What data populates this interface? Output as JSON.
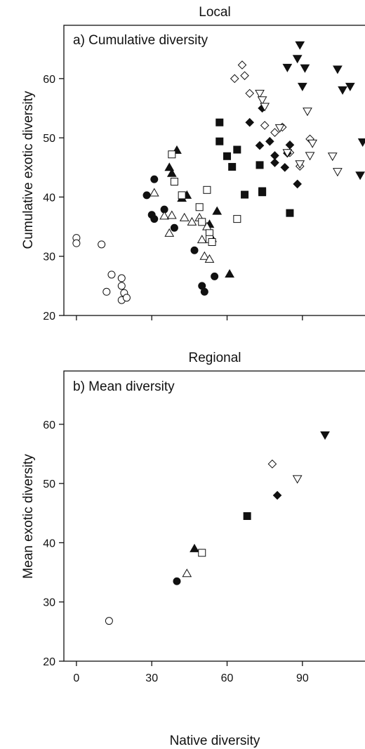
{
  "figure": {
    "panels": [
      {
        "header": "Local",
        "inset_title": "a) Cumulative diversity",
        "ylabel": "Cumulative exotic diversity"
      },
      {
        "header": "Regional",
        "inset_title": "b) Mean diversity",
        "ylabel": "Mean exotic diversity"
      }
    ],
    "xlabel": "Native diversity"
  },
  "chart_data": [
    {
      "type": "scatter",
      "title": "Local",
      "subtitle": "a) Cumulative diversity",
      "xlabel": "",
      "ylabel": "Cumulative exotic diversity",
      "xlim": [
        -5,
        118
      ],
      "ylim": [
        20,
        69
      ],
      "x_ticks": [
        0,
        30,
        60,
        90
      ],
      "x_tick_labels_shown": false,
      "y_ticks": [
        20,
        30,
        40,
        50,
        60
      ],
      "grid": false,
      "series": [
        {
          "marker": "circle",
          "fill": "open",
          "points": [
            [
              0,
              33.1
            ],
            [
              0,
              32.2
            ],
            [
              10,
              32
            ],
            [
              14,
              26.9
            ],
            [
              18,
              26.3
            ],
            [
              18,
              25
            ],
            [
              19,
              23.8
            ],
            [
              12,
              24
            ],
            [
              18,
              22.6
            ],
            [
              20,
              23
            ]
          ]
        },
        {
          "marker": "circle",
          "fill": "filled",
          "points": [
            [
              28,
              40.3
            ],
            [
              31,
              43
            ],
            [
              30,
              37
            ],
            [
              31,
              36.3
            ],
            [
              35,
              37.9
            ],
            [
              39,
              34.8
            ],
            [
              47,
              31
            ],
            [
              50,
              25
            ],
            [
              51,
              24
            ],
            [
              55,
              26.6
            ]
          ]
        },
        {
          "marker": "triangle-up",
          "fill": "filled",
          "points": [
            [
              40,
              47.9
            ],
            [
              37,
              45
            ],
            [
              38,
              44
            ],
            [
              42,
              39.8
            ],
            [
              44,
              40.3
            ],
            [
              53,
              35.4
            ],
            [
              54,
              33
            ],
            [
              56,
              37.6
            ],
            [
              61,
              27
            ]
          ]
        },
        {
          "marker": "triangle-up",
          "fill": "open",
          "points": [
            [
              31,
              40.7
            ],
            [
              35,
              36.8
            ],
            [
              37,
              33.9
            ],
            [
              38,
              36.9
            ],
            [
              43,
              36.5
            ],
            [
              46,
              35.8
            ],
            [
              49,
              36.5
            ],
            [
              50,
              32.8
            ],
            [
              51,
              30
            ],
            [
              53,
              29.5
            ],
            [
              52,
              35
            ]
          ]
        },
        {
          "marker": "square",
          "fill": "open",
          "points": [
            [
              38,
              47.2
            ],
            [
              39,
              42.6
            ],
            [
              42,
              40.3
            ],
            [
              49,
              38.3
            ],
            [
              52,
              41.2
            ],
            [
              50,
              35.8
            ],
            [
              53,
              33.9
            ],
            [
              53,
              32.9
            ],
            [
              54,
              32.4
            ],
            [
              64,
              36.3
            ]
          ]
        },
        {
          "marker": "square",
          "fill": "filled",
          "points": [
            [
              57,
              52.6
            ],
            [
              57,
              49.4
            ],
            [
              60,
              46.9
            ],
            [
              62,
              45.1
            ],
            [
              64,
              48
            ],
            [
              67,
              40.4
            ],
            [
              73,
              45.4
            ],
            [
              74,
              41
            ],
            [
              74,
              40.8
            ],
            [
              85,
              37.3
            ]
          ]
        },
        {
          "marker": "diamond",
          "fill": "open",
          "points": [
            [
              63,
              60
            ],
            [
              66,
              62.3
            ],
            [
              67,
              60.5
            ],
            [
              69,
              57.5
            ],
            [
              75,
              52.1
            ],
            [
              79,
              50.9
            ],
            [
              82,
              51.8
            ],
            [
              85,
              47.5
            ],
            [
              89,
              45.2
            ],
            [
              93,
              49.8
            ]
          ]
        },
        {
          "marker": "diamond",
          "fill": "filled",
          "points": [
            [
              69,
              52.6
            ],
            [
              73,
              48.7
            ],
            [
              74,
              55
            ],
            [
              77,
              49.4
            ],
            [
              79,
              47
            ],
            [
              79,
              45.8
            ],
            [
              83,
              45
            ],
            [
              84,
              47.4
            ],
            [
              85,
              48.8
            ],
            [
              88,
              42.2
            ]
          ]
        },
        {
          "marker": "triangle-down",
          "fill": "open",
          "points": [
            [
              73,
              57.5
            ],
            [
              74,
              56.4
            ],
            [
              75,
              55.3
            ],
            [
              81,
              51.7
            ],
            [
              84,
              47.5
            ],
            [
              89,
              45.6
            ],
            [
              92,
              54.5
            ],
            [
              93,
              47
            ],
            [
              94,
              49.1
            ],
            [
              102,
              46.9
            ],
            [
              104,
              44.3
            ]
          ]
        },
        {
          "marker": "triangle-down",
          "fill": "filled",
          "points": [
            [
              84,
              61.9
            ],
            [
              88,
              63.4
            ],
            [
              89,
              65.7
            ],
            [
              91,
              61.8
            ],
            [
              90,
              58.7
            ],
            [
              104,
              61.6
            ],
            [
              106,
              58.1
            ],
            [
              109,
              58.7
            ],
            [
              114,
              49.3
            ],
            [
              113,
              43.7
            ]
          ]
        }
      ]
    },
    {
      "type": "scatter",
      "title": "Regional",
      "subtitle": "b) Mean diversity",
      "xlabel": "Native diversity",
      "ylabel": "Mean exotic diversity",
      "xlim": [
        -5,
        118
      ],
      "ylim": [
        20,
        69
      ],
      "x_ticks": [
        0,
        30,
        60,
        90
      ],
      "x_tick_labels_shown": true,
      "y_ticks": [
        20,
        30,
        40,
        50,
        60
      ],
      "grid": false,
      "series": [
        {
          "marker": "circle",
          "fill": "open",
          "points": [
            [
              13,
              26.8
            ]
          ]
        },
        {
          "marker": "circle",
          "fill": "filled",
          "points": [
            [
              40,
              33.5
            ]
          ]
        },
        {
          "marker": "triangle-up",
          "fill": "open",
          "points": [
            [
              44,
              34.8
            ]
          ]
        },
        {
          "marker": "triangle-up",
          "fill": "filled",
          "points": [
            [
              47,
              39
            ]
          ]
        },
        {
          "marker": "square",
          "fill": "open",
          "points": [
            [
              50,
              38.3
            ]
          ]
        },
        {
          "marker": "square",
          "fill": "filled",
          "points": [
            [
              68,
              44.5
            ]
          ]
        },
        {
          "marker": "diamond",
          "fill": "open",
          "points": [
            [
              78,
              53.3
            ]
          ]
        },
        {
          "marker": "diamond",
          "fill": "filled",
          "points": [
            [
              80,
              48
            ]
          ]
        },
        {
          "marker": "triangle-down",
          "fill": "open",
          "points": [
            [
              88,
              50.8
            ]
          ]
        },
        {
          "marker": "triangle-down",
          "fill": "filled",
          "points": [
            [
              99,
              58.2
            ]
          ]
        }
      ]
    }
  ]
}
